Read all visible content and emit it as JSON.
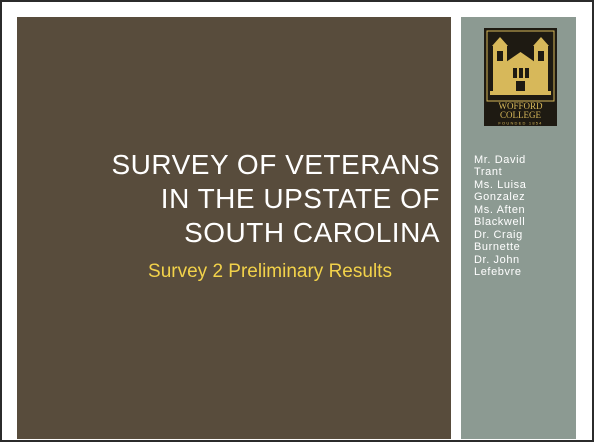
{
  "slide": {
    "title_lines": [
      "SURVEY OF VETERANS",
      "IN THE UPSTATE OF",
      "SOUTH CAROLINA"
    ],
    "subtitle": "Survey 2 Preliminary Results",
    "presenters": [
      [
        "Mr. David",
        "Trant"
      ],
      [
        "Ms. Luisa",
        "Gonzalez"
      ],
      [
        "Ms. Aften",
        "Blackwell"
      ],
      [
        "Dr. Craig",
        "Burnette"
      ],
      [
        "Dr. John",
        "Lefebvre"
      ]
    ]
  },
  "logo": {
    "name": "wofford-college-logo",
    "line1": "WOFFORD",
    "line2": "COLLEGE",
    "tagline": "FOUNDED 1854"
  },
  "colors": {
    "main_panel": "#584c3c",
    "side_panel": "#8c9a92",
    "title": "#ffffff",
    "subtitle": "#f2d24a",
    "logo_background": "#1e1a12",
    "logo_gold": "#d7b85a"
  }
}
